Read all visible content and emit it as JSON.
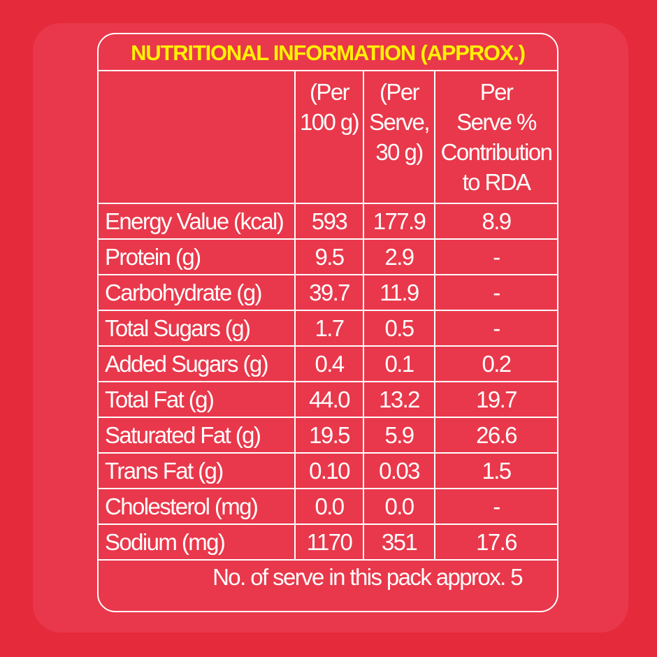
{
  "title": "NUTRITIONAL INFORMATION (APPROX.)",
  "columns": [
    "(Per 100 g)",
    "(Per Serve, 30 g)",
    "Per Serve % Contribution to RDA"
  ],
  "column_lines": [
    [
      "(Per",
      "100 g)"
    ],
    [
      "(Per",
      "Serve,",
      "30 g)"
    ],
    [
      "Per",
      "Serve %",
      "Contribution",
      "to RDA"
    ]
  ],
  "rows": [
    {
      "name": "Energy Value (kcal)",
      "per100": "593",
      "perServe": "177.9",
      "rda": "8.9"
    },
    {
      "name": "Protein (g)",
      "per100": "9.5",
      "perServe": "2.9",
      "rda": "-"
    },
    {
      "name": "Carbohydrate (g)",
      "per100": "39.7",
      "perServe": "11.9",
      "rda": "-"
    },
    {
      "name": "Total Sugars (g)",
      "per100": "1.7",
      "perServe": "0.5",
      "rda": "-"
    },
    {
      "name": "Added Sugars (g)",
      "per100": "0.4",
      "perServe": "0.1",
      "rda": "0.2"
    },
    {
      "name": "Total Fat (g)",
      "per100": "44.0",
      "perServe": "13.2",
      "rda": "19.7"
    },
    {
      "name": "Saturated Fat (g)",
      "per100": "19.5",
      "perServe": "5.9",
      "rda": "26.6"
    },
    {
      "name": "Trans Fat (g)",
      "per100": "0.10",
      "perServe": "0.03",
      "rda": "1.5"
    },
    {
      "name": "Cholesterol (mg)",
      "per100": "0.0",
      "perServe": "0.0",
      "rda": "-"
    },
    {
      "name": "Sodium (mg)",
      "per100": "1170",
      "perServe": "351",
      "rda": "17.6"
    }
  ],
  "footer": "No. of serve in this pack approx. 5",
  "colors": {
    "background": "#e52a3c",
    "panel": "#e9384b",
    "title": "#fff200",
    "text": "#ffffff"
  }
}
